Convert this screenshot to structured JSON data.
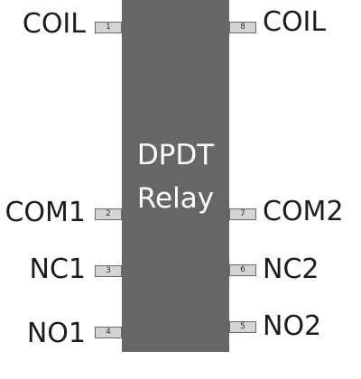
{
  "chip": {
    "title_line1": "DPDT",
    "title_line2": "Relay"
  },
  "left_pins": [
    {
      "number": "1",
      "label": "COIL"
    },
    {
      "number": "2",
      "label": "COM1"
    },
    {
      "number": "3",
      "label": "NC1"
    },
    {
      "number": "4",
      "label": "NO1"
    }
  ],
  "right_pins": [
    {
      "number": "8",
      "label": "COIL"
    },
    {
      "number": "7",
      "label": "COM2"
    },
    {
      "number": "6",
      "label": "NC2"
    },
    {
      "number": "5",
      "label": "NO2"
    }
  ],
  "colors": {
    "chip_body": "#666666",
    "chip_text": "#ffffff",
    "pin_fill": "#d4d4d4",
    "pin_border": "#6a6a6a",
    "label_text": "#1c1c1c"
  }
}
